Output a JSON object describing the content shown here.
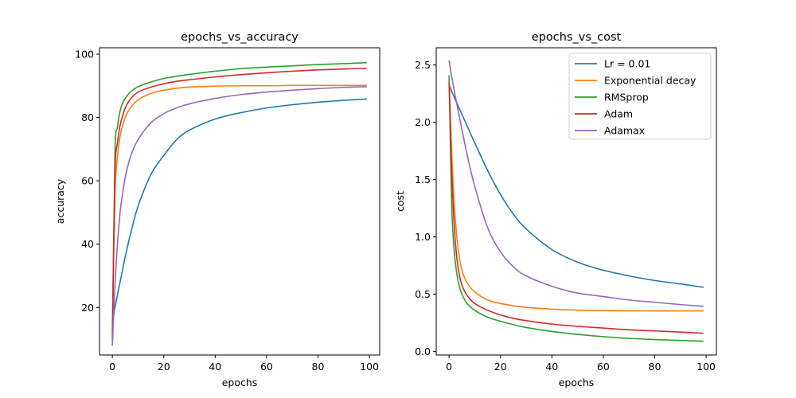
{
  "chart_data": [
    {
      "type": "line",
      "title": "epochs_vs_accuracy",
      "xlabel": "epochs",
      "ylabel": "accuracy",
      "xlim": [
        -5,
        104
      ],
      "ylim": [
        5,
        102
      ],
      "xticks": [
        0,
        20,
        40,
        60,
        80,
        100
      ],
      "yticks": [
        20,
        40,
        60,
        80,
        100
      ],
      "grid": false,
      "x": [
        0,
        1,
        2,
        3,
        4,
        5,
        7,
        10,
        15,
        20,
        25,
        30,
        40,
        50,
        60,
        70,
        80,
        90,
        99
      ],
      "series": [
        {
          "name": "Lr = 0.01",
          "color": "#1f77b4",
          "values": [
            15,
            20,
            24,
            28,
            32,
            36,
            43,
            52,
            62,
            68,
            73,
            76,
            79.5,
            81.5,
            83,
            84,
            84.8,
            85.4,
            85.8
          ]
        },
        {
          "name": "Exponential decay",
          "color": "#ff7f0e",
          "values": [
            12,
            55,
            68,
            74,
            77.5,
            80,
            83,
            85.5,
            87.6,
            88.6,
            89.2,
            89.6,
            89.9,
            90.0,
            90.0,
            90.1,
            90.1,
            90.1,
            90.1
          ]
        },
        {
          "name": "RMSprop",
          "color": "#2ca02c",
          "values": [
            8,
            68,
            77,
            82,
            84.5,
            86,
            88,
            89.7,
            91.2,
            92.3,
            93.0,
            93.6,
            94.6,
            95.4,
            95.9,
            96.3,
            96.7,
            97.0,
            97.3
          ]
        },
        {
          "name": "Adam",
          "color": "#d62728",
          "values": [
            10,
            62,
            72,
            77.5,
            80.5,
            83,
            85.8,
            88,
            89.6,
            90.6,
            91.4,
            91.9,
            92.8,
            93.5,
            94.1,
            94.6,
            95.0,
            95.3,
            95.5
          ]
        },
        {
          "name": "Adamax",
          "color": "#9467bd",
          "values": [
            8,
            27,
            40,
            50,
            56,
            61,
            67.5,
            73,
            78.3,
            81.2,
            83,
            84.3,
            86,
            87.2,
            88,
            88.6,
            89.1,
            89.5,
            89.7
          ]
        }
      ]
    },
    {
      "type": "line",
      "title": "epochs_vs_cost",
      "xlabel": "epochs",
      "ylabel": "cost",
      "xlim": [
        -5,
        104
      ],
      "ylim": [
        -0.03,
        2.65
      ],
      "xticks": [
        0,
        20,
        40,
        60,
        80,
        100
      ],
      "yticks": [
        0.0,
        0.5,
        1.0,
        1.5,
        2.0,
        2.5
      ],
      "ytick_labels": [
        "0.0",
        "0.5",
        "1.0",
        "1.5",
        "2.0",
        "2.5"
      ],
      "grid": false,
      "legend_position": "top-right",
      "x": [
        0,
        1,
        2,
        3,
        4,
        5,
        7,
        10,
        15,
        20,
        25,
        30,
        40,
        50,
        60,
        70,
        80,
        90,
        99
      ],
      "series": [
        {
          "name": "Lr = 0.01",
          "color": "#1f77b4",
          "values": [
            2.33,
            2.27,
            2.22,
            2.17,
            2.12,
            2.07,
            1.97,
            1.82,
            1.58,
            1.37,
            1.2,
            1.07,
            0.89,
            0.78,
            0.71,
            0.66,
            0.62,
            0.59,
            0.56
          ]
        },
        {
          "name": "Exponential decay",
          "color": "#ff7f0e",
          "values": [
            2.38,
            1.75,
            1.3,
            1.0,
            0.82,
            0.71,
            0.6,
            0.52,
            0.45,
            0.42,
            0.4,
            0.385,
            0.37,
            0.362,
            0.358,
            0.356,
            0.355,
            0.355,
            0.355
          ]
        },
        {
          "name": "RMSprop",
          "color": "#2ca02c",
          "values": [
            2.41,
            1.3,
            0.88,
            0.68,
            0.57,
            0.5,
            0.42,
            0.36,
            0.3,
            0.265,
            0.235,
            0.21,
            0.175,
            0.15,
            0.13,
            0.115,
            0.105,
            0.097,
            0.09
          ]
        },
        {
          "name": "Adam",
          "color": "#d62728",
          "values": [
            2.35,
            1.6,
            1.1,
            0.82,
            0.67,
            0.58,
            0.49,
            0.42,
            0.36,
            0.32,
            0.29,
            0.27,
            0.24,
            0.22,
            0.205,
            0.19,
            0.18,
            0.17,
            0.16
          ]
        },
        {
          "name": "Adamax",
          "color": "#9467bd",
          "values": [
            2.54,
            2.4,
            2.28,
            2.16,
            2.05,
            1.94,
            1.72,
            1.44,
            1.08,
            0.87,
            0.74,
            0.66,
            0.57,
            0.51,
            0.48,
            0.45,
            0.43,
            0.41,
            0.395
          ]
        }
      ]
    }
  ]
}
